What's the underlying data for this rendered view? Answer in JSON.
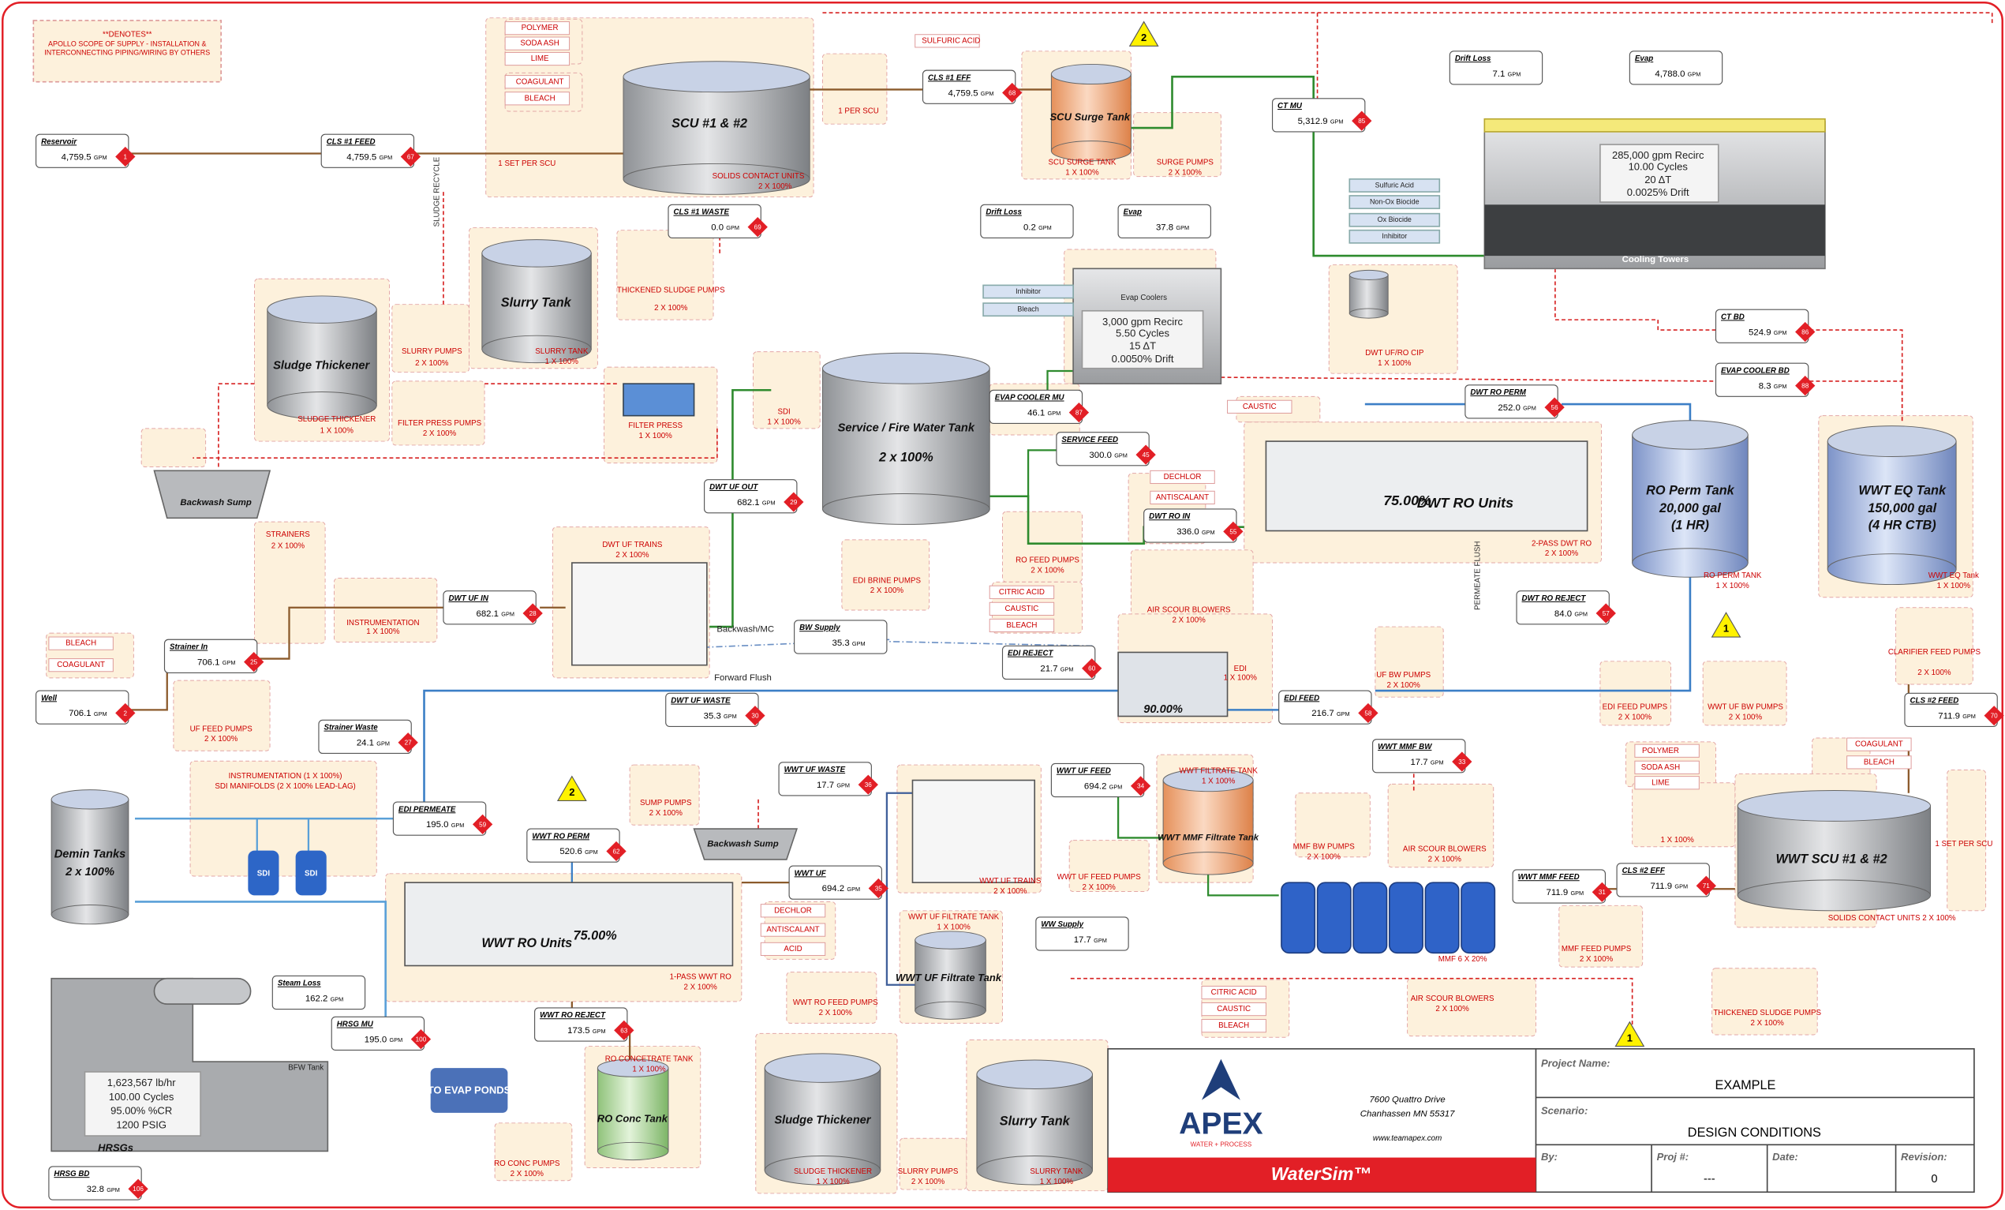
{
  "note": {
    "title": "**DENOTES**",
    "text": "APOLLO SCOPE OF SUPPLY - INSTALLATION & INTERCONNECTING PIPING/WIRING BY OTHERS"
  },
  "streams": [
    {
      "name": "Reservoir",
      "value": "4,759.5",
      "unit": "GPM",
      "id": "1"
    },
    {
      "name": "CLS #1 FEED",
      "value": "4,759.5",
      "unit": "GPM",
      "id": "67"
    },
    {
      "name": "CLS #1 WASTE",
      "value": "0.0",
      "unit": "GPM",
      "id": "69"
    },
    {
      "name": "CLS #1 EFF",
      "value": "4,759.5",
      "unit": "GPM",
      "id": "68"
    },
    {
      "name": "CT MU",
      "value": "5,312.9",
      "unit": "GPM",
      "id": "85"
    },
    {
      "name": "Drift Loss",
      "value": "7.1",
      "unit": "GPM"
    },
    {
      "name": "Evap",
      "value": "4,788.0",
      "unit": "GPM"
    },
    {
      "name": "Drift Loss",
      "value": "0.2",
      "unit": "GPM"
    },
    {
      "name": "Evap",
      "value": "37.8",
      "unit": "GPM"
    },
    {
      "name": "CT BD",
      "value": "524.9",
      "unit": "GPM",
      "id": "86"
    },
    {
      "name": "EVAP COOLER BD",
      "value": "8.3",
      "unit": "GPM",
      "id": "88"
    },
    {
      "name": "EVAP COOLER MU",
      "value": "46.1",
      "unit": "GPM",
      "id": "87"
    },
    {
      "name": "SERVICE FEED",
      "value": "300.0",
      "unit": "GPM",
      "id": "45"
    },
    {
      "name": "DWT RO PERM",
      "value": "252.0",
      "unit": "GPM",
      "id": "56"
    },
    {
      "name": "DWT RO IN",
      "value": "336.0",
      "unit": "GPM",
      "id": "55"
    },
    {
      "name": "DWT UF OUT",
      "value": "682.1",
      "unit": "GPM",
      "id": "29"
    },
    {
      "name": "DWT UF IN",
      "value": "682.1",
      "unit": "GPM",
      "id": "28"
    },
    {
      "name": "DWT RO REJECT",
      "value": "84.0",
      "unit": "GPM",
      "id": "57"
    },
    {
      "name": "BW Supply",
      "value": "35.3",
      "unit": "GPM"
    },
    {
      "name": "EDI REJECT",
      "value": "21.7",
      "unit": "GPM",
      "id": "60"
    },
    {
      "name": "Strainer In",
      "value": "706.1",
      "unit": "GPM",
      "id": "25"
    },
    {
      "name": "Well",
      "value": "706.1",
      "unit": "GPM",
      "id": "2"
    },
    {
      "name": "DWT UF WASTE",
      "value": "35.3",
      "unit": "GPM",
      "id": "30"
    },
    {
      "name": "Strainer Waste",
      "value": "24.1",
      "unit": "GPM",
      "id": "27"
    },
    {
      "name": "EDI FEED",
      "value": "216.7",
      "unit": "GPM",
      "id": "58"
    },
    {
      "name": "CLS #2 FEED",
      "value": "711.9",
      "unit": "GPM",
      "id": "70"
    },
    {
      "name": "WWT MMF BW",
      "value": "17.7",
      "unit": "GPM",
      "id": "33"
    },
    {
      "name": "WWT UF WASTE",
      "value": "17.7",
      "unit": "GPM",
      "id": "36"
    },
    {
      "name": "WWT UF FEED",
      "value": "694.2",
      "unit": "GPM",
      "id": "34"
    },
    {
      "name": "EDI PERMEATE",
      "value": "195.0",
      "unit": "GPM",
      "id": "59"
    },
    {
      "name": "WWT RO PERM",
      "value": "520.6",
      "unit": "GPM",
      "id": "62"
    },
    {
      "name": "WWT UF",
      "value": "694.2",
      "unit": "GPM",
      "id": "35"
    },
    {
      "name": "WWT MMF FEED",
      "value": "711.9",
      "unit": "GPM",
      "id": "31"
    },
    {
      "name": "CLS #2 EFF",
      "value": "711.9",
      "unit": "GPM",
      "id": "71"
    },
    {
      "name": "WW Supply",
      "value": "17.7",
      "unit": "GPM"
    },
    {
      "name": "Steam Loss",
      "value": "162.2",
      "unit": "GPM"
    },
    {
      "name": "HRSG MU",
      "value": "195.0",
      "unit": "GPM",
      "id": "100"
    },
    {
      "name": "WWT RO REJECT",
      "value": "173.5",
      "unit": "GPM",
      "id": "63"
    },
    {
      "name": "HRSG BD",
      "value": "32.8",
      "unit": "GPM",
      "id": "106"
    }
  ],
  "labels": [
    "SCU #1 & #2",
    "SOLIDS CONTACT UNITS",
    "2 X 100%",
    "1 SET PER SCU",
    "POLYMER",
    "SODA ASH",
    "LIME",
    "COAGULANT",
    "BLEACH",
    "SULFURIC ACID",
    "1 PER SCU",
    "SCU Surge Tank",
    "SCU SURGE TANK",
    "1 X 100%",
    "SURGE PUMPS",
    "2 X 100%",
    "THICKENED SLUDGE PUMPS",
    "2 X 100%",
    "Slurry Tank",
    "SLURRY PUMPS",
    "2 X 100%",
    "SLURRY TANK",
    "1 X 100%",
    "Sludge Thickener",
    "SLUDGE THICKENER",
    "1 X 100%",
    "FILTER PRESS PUMPS",
    "2 X 100%",
    "FILTER PRESS",
    "1 X 100%",
    "SLUDGE RECYCLE",
    "Backwash Sump",
    "SDI",
    "1 X 100%",
    "Service / Fire Water Tank",
    "2 x 100%",
    "STRAINERS",
    "2 X 100%",
    "INSTRUMENTATION",
    "1 X 100%",
    "DWT UF TRAINS",
    "2 X 100%",
    "Backwash/MC",
    "Forward Flush",
    "BLEACH",
    "COAGULANT",
    "UF FEED PUMPS",
    "2 X 100%",
    "EDI BRINE PUMPS",
    "2 X 100%",
    "RO FEED PUMPS",
    "2 X 100%",
    "CITRIC ACID",
    "CAUSTIC",
    "BLEACH",
    "DECHLOR",
    "ANTISCALANT",
    "CAUSTIC",
    "DWT RO Units",
    "75.00%",
    "2-PASS DWT RO",
    "2 X 100%",
    "AIR SCOUR BLOWERS",
    "2 X 100%",
    "EDI",
    "1 X 100%",
    "90.00%",
    "UF BW PUMPS",
    "2 X 100%",
    "PERMEATE FLUSH",
    "RO Perm Tank",
    "20,000 gal",
    "(1 HR)",
    "RO PERM TANK",
    "1 X 100%",
    "WWT EQ Tank",
    "150,000 gal",
    "(4 HR CTB)",
    "WWT EQ Tank",
    "1 X 100%",
    "CLARIFIER FEED PUMPS",
    "2 X 100%",
    "EDI FEED PUMPS",
    "2 X 100%",
    "WWT UF BW PUMPS",
    "2 X 100%",
    "DWT UF/RO CIP",
    "1 X 100%",
    "Cooling Towers",
    "Sulfuric Acid",
    "Non-Ox Biocide",
    "Ox Biocide",
    "Inhibitor",
    "285,000 gpm Recirc",
    "10.00 Cycles",
    "20 ΔT",
    "0.0025% Drift",
    "Evap Coolers",
    "Inhibitor",
    "Bleach",
    "3,000 gpm Recirc",
    "5.50 Cycles",
    "15 ΔT",
    "0.0050% Drift",
    "INSTRUMENTATION (1 X 100%)",
    "SDI MANIFOLDS (2 X 100% LEAD-LAG)",
    "SDI",
    "SDI",
    "Demin Tanks",
    "2 x 100%",
    "Backwash Sump",
    "SUMP PUMPS",
    "2 X 100%",
    "WWT UF TRAINS",
    "2 X 100%",
    "WWT FILTRATE TANK",
    "1 X 100%",
    "WWT MMF Filtrate Tank",
    "WWT UF FEED PUMPS",
    "2 X 100%",
    "MMF BW PUMPS",
    "2 X 100%",
    "AIR SCOUR BLOWERS",
    "2 X 100%",
    "MMF 6 X 20%",
    "POLYMER",
    "SODA ASH",
    "LIME",
    "COAGULANT",
    "BLEACH",
    "WWT SCU #1 & #2",
    "SOLIDS CONTACT UNITS 2 X 100%",
    "1 SET PER SCU",
    "1 X 100%",
    "MMF FEED PUMPS",
    "2 X 100%",
    "WWT RO Units",
    "75.00%",
    "1-PASS WWT RO",
    "2 X 100%",
    "DECHLOR",
    "ANTISCALANT",
    "ACID",
    "WWT UF FILTRATE TANK",
    "1 X 100%",
    "WWT UF Filtrate Tank",
    "WWT RO FEED PUMPS",
    "2 X 100%",
    "CITRIC ACID",
    "CAUSTIC",
    "BLEACH",
    "AIR SCOUR BLOWERS",
    "2 X 100%",
    "THICKENED SLUDGE PUMPS",
    "2 X 100%",
    "RO CONCETRATE TANK",
    "1 X 100%",
    "RO Conc Tank",
    "RO CONC PUMPS",
    "2 X 100%",
    "TO EVAP PONDS",
    "Sludge Thickener",
    "SLUDGE THICKENER",
    "1 X 100%",
    "SLURRY PUMPS",
    "2 X 100%",
    "Slurry Tank",
    "SLURRY TANK",
    "1 X 100%",
    "HRSGs",
    "BFW Tank",
    "1,623,567 lb/hr",
    "100.00 Cycles",
    "95.00% %CR",
    "1200 PSIG"
  ],
  "markers": [
    "2",
    "2",
    "1",
    "1"
  ],
  "title_block": {
    "logo": "APEX",
    "logo_sub": "WATER + PROCESS",
    "address": [
      "7600 Quattro Drive",
      "Chanhassen MN 55317"
    ],
    "web": "www.teamapex.com",
    "product": "WaterSim™",
    "project_label": "Project Name:",
    "project": "EXAMPLE",
    "scenario_label": "Scenario:",
    "scenario": "DESIGN CONDITIONS",
    "by_label": "By:",
    "proj_label": "Proj #:",
    "proj": "---",
    "date_label": "Date:",
    "revision_label": "Revision:",
    "revision": "0"
  }
}
